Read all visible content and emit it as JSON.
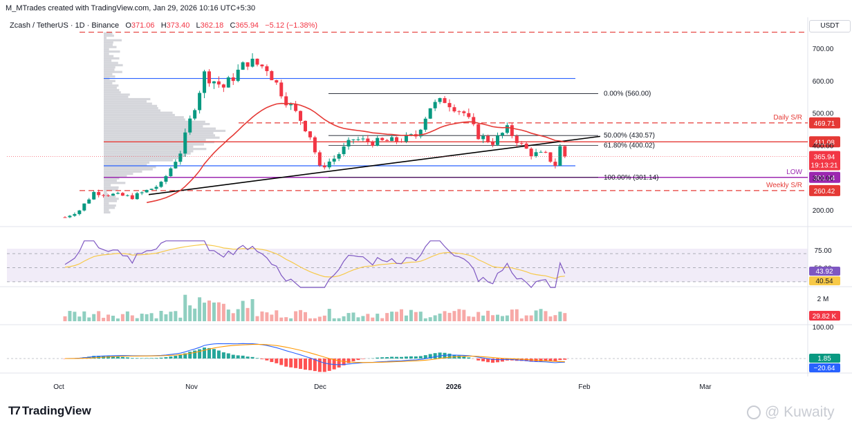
{
  "header": {
    "created_by": "M_MTrades created with TradingView.com, Jan 29, 2026 10:16 UTC+5:30"
  },
  "symbol": {
    "name": "Zcash / TetherUS · 1D · Binance",
    "open_label": "O",
    "open": "371.06",
    "high_label": "H",
    "high": "373.40",
    "low_label": "L",
    "low": "362.18",
    "close_label": "C",
    "close": "365.94",
    "change": "−5.12 (−1.38%)"
  },
  "currency_button": "USDT",
  "footer": {
    "logo_text": "TradingView",
    "watermark": "@ Kuwaity"
  },
  "colors": {
    "up": "#089981",
    "down": "#f23645",
    "ma": "#e53935",
    "blue_line": "#2962ff",
    "rsi": "#7e57c2",
    "rsi_ma": "#f7c948",
    "macd": "#2962ff",
    "signal": "#ff9800",
    "purple": "#9c27b0"
  },
  "chart_data": {
    "type": "candlestick",
    "price_axis": {
      "ticks": [
        "700.00",
        "600.00",
        "500.00",
        "400.00",
        "300.00",
        "200.00"
      ],
      "range": [
        150,
        760
      ]
    },
    "time_axis": [
      "Oct",
      "Nov",
      "Dec",
      "2026",
      "Feb",
      "Mar"
    ],
    "price_path": [
      [
        0,
        178
      ],
      [
        3,
        200
      ],
      [
        6,
        255
      ],
      [
        10,
        248
      ],
      [
        14,
        240
      ],
      [
        20,
        280
      ],
      [
        24,
        380
      ],
      [
        29,
        620
      ],
      [
        33,
        580
      ],
      [
        38,
        660
      ],
      [
        42,
        640
      ],
      [
        46,
        540
      ],
      [
        49,
        480
      ],
      [
        51,
        430
      ],
      [
        53,
        330
      ],
      [
        56,
        360
      ],
      [
        60,
        420
      ],
      [
        64,
        410
      ],
      [
        69,
        415
      ],
      [
        73,
        430
      ],
      [
        76,
        520
      ],
      [
        79,
        540
      ],
      [
        83,
        500
      ],
      [
        86,
        430
      ],
      [
        89,
        410
      ],
      [
        92,
        450
      ],
      [
        95,
        400
      ],
      [
        97,
        375
      ],
      [
        100,
        370
      ],
      [
        102,
        340
      ],
      [
        103,
        395
      ],
      [
        104,
        366
      ]
    ],
    "levels": [
      {
        "label": "Daily S/R",
        "value": "469.71",
        "style": "dashed",
        "color": "#e53935"
      },
      {
        "label": "",
        "value": "411.08",
        "style": "solid",
        "color": "#e53935"
      },
      {
        "label": "Weekly S/R",
        "value": "260.42",
        "style": "dashed",
        "color": "#e53935"
      },
      {
        "label": "LOW",
        "value": "301.14",
        "style": "solid",
        "color": "#9c27b0"
      }
    ],
    "blue_levels": [
      "607",
      "337"
    ],
    "top_dashed_level": "750",
    "fib": [
      {
        "label": "0.00% (560.00)",
        "value": 560
      },
      {
        "label": "50.00% (430.57)",
        "value": 430.57
      },
      {
        "label": "61.80% (400.02)",
        "value": 400.02
      },
      {
        "label": "100.00% (301.14)",
        "value": 301.14
      }
    ],
    "current_price": {
      "value": "365.94",
      "countdown": "19:13:21"
    },
    "rsi": {
      "value": "43.92",
      "ma": "40.54",
      "ticks": [
        "75.00",
        "50.00"
      ],
      "upper": 70,
      "lower": 30
    },
    "volume": {
      "value": "29.82 K",
      "ticks": [
        "2 M"
      ]
    },
    "macd": {
      "hist": "1.85",
      "macd": "−20.64",
      "ticks": [
        "100.00"
      ]
    }
  }
}
